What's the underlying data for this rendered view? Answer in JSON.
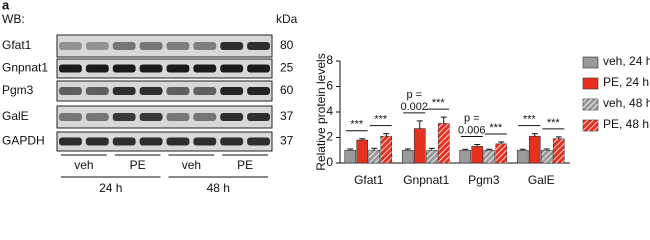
{
  "blot": {
    "panel_label": "a",
    "header": "WB:",
    "unit_header": "kDa",
    "rows": [
      {
        "protein": "Gfat1",
        "kda": 80
      },
      {
        "protein": "Gnpnat1",
        "kda": 25
      },
      {
        "protein": "Pgm3",
        "kda": 60
      },
      {
        "protein": "GalE",
        "kda": 37
      },
      {
        "protein": "GAPDH",
        "kda": 37
      }
    ],
    "lanes": [
      "veh",
      "PE",
      "veh",
      "PE"
    ],
    "timepoints": [
      "24 h",
      "48 h"
    ]
  },
  "chart_data": {
    "type": "bar",
    "y_label": "Relative protein levels",
    "categories": [
      "Gfat1",
      "Gnpnat1",
      "Pgm3",
      "GalE"
    ],
    "series": [
      {
        "name": "veh, 24 h",
        "color": "#9a9a9a",
        "hatch": false,
        "values": [
          1.0,
          1.0,
          1.0,
          1.0
        ],
        "errors": [
          0.1,
          0.1,
          0.08,
          0.08
        ]
      },
      {
        "name": "PE, 24 h",
        "color": "#e8301f",
        "hatch": false,
        "values": [
          1.8,
          2.7,
          1.3,
          2.1
        ],
        "errors": [
          0.1,
          0.6,
          0.15,
          0.2
        ]
      },
      {
        "name": "veh, 48 h",
        "color": "#9a9a9a",
        "hatch": true,
        "values": [
          1.0,
          1.0,
          1.0,
          1.0
        ],
        "errors": [
          0.15,
          0.15,
          0.08,
          0.1
        ]
      },
      {
        "name": "PE, 48 h",
        "color": "#e8301f",
        "hatch": true,
        "values": [
          2.1,
          3.1,
          1.5,
          1.9
        ],
        "errors": [
          0.2,
          0.5,
          0.15,
          0.15
        ]
      }
    ],
    "significance": [
      [
        [
          "***"
        ],
        [
          "***"
        ]
      ],
      [
        [
          "p =",
          "0.002"
        ],
        [
          "***"
        ]
      ],
      [
        [
          "p =",
          "0.006"
        ],
        [
          "***"
        ]
      ],
      [
        [
          "***"
        ],
        [
          "***"
        ]
      ]
    ],
    "ylim": [
      0,
      8
    ],
    "yticks": [
      0,
      2,
      4,
      6,
      8
    ],
    "grid": false,
    "legend": "right"
  }
}
